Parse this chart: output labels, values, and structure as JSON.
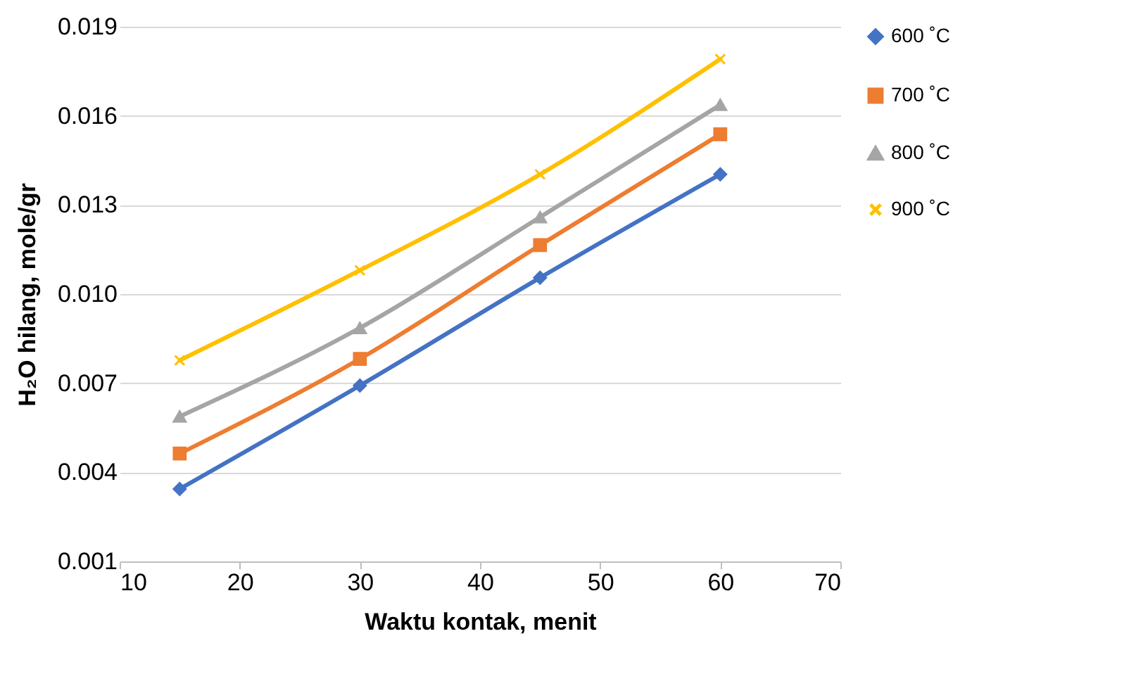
{
  "chart_data": {
    "type": "line",
    "xlabel": "Waktu kontak, menit",
    "ylabel": "H₂O hilang, mole/gr",
    "x": [
      15,
      30,
      45,
      60
    ],
    "series": [
      {
        "name": "600 ˚C",
        "color": "#4472c4",
        "marker": "diamond",
        "values": [
          0.00344,
          0.00692,
          0.01055,
          0.01403
        ]
      },
      {
        "name": "700 ˚C",
        "color": "#ed7d31",
        "marker": "square",
        "values": [
          0.00463,
          0.00782,
          0.01165,
          0.01538
        ]
      },
      {
        "name": "800 ˚C",
        "color": "#a5a5a5",
        "marker": "triangle",
        "values": [
          0.00588,
          0.00886,
          0.01259,
          0.01637
        ]
      },
      {
        "name": "900 ˚C",
        "color": "#ffc000",
        "marker": "cross",
        "values": [
          0.00777,
          0.0108,
          0.01403,
          0.01791
        ]
      }
    ],
    "xlim": [
      10,
      70
    ],
    "xticks": [
      10,
      20,
      30,
      40,
      50,
      60,
      70
    ],
    "ylim": [
      0.001,
      0.019
    ],
    "yticks": [
      0.001,
      0.004,
      0.007,
      {
        "value": 0.01,
        "label": "0.010"
      },
      0.013,
      0.016,
      0.019
    ],
    "grid": "y",
    "legend": "right",
    "line_style": "solid"
  }
}
